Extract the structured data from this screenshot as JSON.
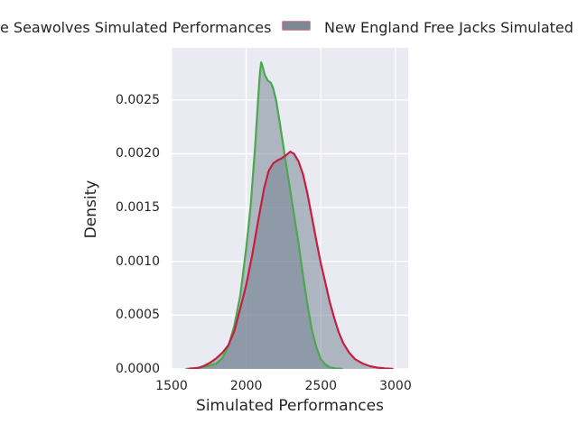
{
  "chart_data": {
    "type": "area",
    "subtype": "kde-density",
    "title": "",
    "xlabel": "Simulated Performances",
    "ylabel": "Density",
    "xlim": [
      1494,
      3085
    ],
    "ylim": [
      0,
      0.002985
    ],
    "grid": true,
    "legend_position": "top-row-clipped-at-figure-edges",
    "colors": {
      "figure_bg": "#ffffff",
      "plot_bg": "#eaeaf2",
      "grid": "#ffffff",
      "fill": "#708090",
      "fill_opacity": 0.5,
      "text": "#262626"
    },
    "xticks": {
      "values": [
        1500,
        2000,
        2500,
        3000
      ],
      "labels": [
        "1500",
        "2000",
        "2500",
        "3000"
      ]
    },
    "yticks": {
      "values": [
        0,
        0.0005,
        0.001,
        0.0015,
        0.002,
        0.0025
      ],
      "labels": [
        "0.0000",
        "0.0005",
        "0.0010",
        "0.0015",
        "0.0020",
        "0.0025"
      ]
    },
    "series": [
      {
        "id": "seawolves",
        "legend_label": "e Seawolves Simulated Performances",
        "line_color": "#4ca74f",
        "swatch_fill": "#7d8894",
        "swatch_edge": "#a9d6a9",
        "swatch_visible": false,
        "points": [
          [
            1600,
            2e-06
          ],
          [
            1650,
            6e-06
          ],
          [
            1700,
            1.5e-05
          ],
          [
            1750,
            3e-05
          ],
          [
            1800,
            5e-05
          ],
          [
            1840,
            0.0001
          ],
          [
            1880,
            0.00021
          ],
          [
            1920,
            0.0004
          ],
          [
            1960,
            0.00068
          ],
          [
            2000,
            0.00112
          ],
          [
            2030,
            0.00152
          ],
          [
            2060,
            0.00208
          ],
          [
            2080,
            0.00252
          ],
          [
            2092,
            0.00276
          ],
          [
            2100,
            0.00285
          ],
          [
            2110,
            0.00281
          ],
          [
            2125,
            0.00273
          ],
          [
            2145,
            0.00268
          ],
          [
            2165,
            0.00266
          ],
          [
            2180,
            0.00261
          ],
          [
            2200,
            0.0025
          ],
          [
            2230,
            0.00224
          ],
          [
            2260,
            0.00197
          ],
          [
            2290,
            0.0017
          ],
          [
            2320,
            0.00144
          ],
          [
            2350,
            0.00117
          ],
          [
            2380,
            0.00087
          ],
          [
            2410,
            0.0006
          ],
          [
            2440,
            0.00036
          ],
          [
            2470,
            0.0002
          ],
          [
            2500,
            9e-05
          ],
          [
            2530,
            4e-05
          ],
          [
            2560,
            1.5e-05
          ],
          [
            2600,
            4e-06
          ],
          [
            2640,
            1e-06
          ]
        ]
      },
      {
        "id": "free-jacks",
        "legend_label": "New England Free Jacks Simulated Pe",
        "line_color": "#c41f3e",
        "swatch_fill": "#7d8894",
        "swatch_edge": "#d98a93",
        "swatch_visible": true,
        "points": [
          [
            1620,
            3e-06
          ],
          [
            1680,
            1e-05
          ],
          [
            1720,
            3e-05
          ],
          [
            1760,
            6e-05
          ],
          [
            1800,
            0.0001
          ],
          [
            1840,
            0.00015
          ],
          [
            1880,
            0.00022
          ],
          [
            1920,
            0.00035
          ],
          [
            1960,
            0.00056
          ],
          [
            2000,
            0.00078
          ],
          [
            2040,
            0.00106
          ],
          [
            2080,
            0.00138
          ],
          [
            2120,
            0.00168
          ],
          [
            2150,
            0.00184
          ],
          [
            2180,
            0.00191
          ],
          [
            2210,
            0.00194
          ],
          [
            2240,
            0.00196
          ],
          [
            2270,
            0.00199
          ],
          [
            2295,
            0.00202
          ],
          [
            2320,
            0.002
          ],
          [
            2350,
            0.00193
          ],
          [
            2380,
            0.00181
          ],
          [
            2410,
            0.00163
          ],
          [
            2440,
            0.00141
          ],
          [
            2470,
            0.00119
          ],
          [
            2500,
            0.00098
          ],
          [
            2530,
            0.0008
          ],
          [
            2560,
            0.00062
          ],
          [
            2590,
            0.00047
          ],
          [
            2620,
            0.00034
          ],
          [
            2650,
            0.00024
          ],
          [
            2690,
            0.00015
          ],
          [
            2730,
            9e-05
          ],
          [
            2780,
            5e-05
          ],
          [
            2830,
            2.5e-05
          ],
          [
            2880,
            1.2e-05
          ],
          [
            2930,
            5e-06
          ],
          [
            2980,
            1e-06
          ]
        ]
      }
    ]
  }
}
